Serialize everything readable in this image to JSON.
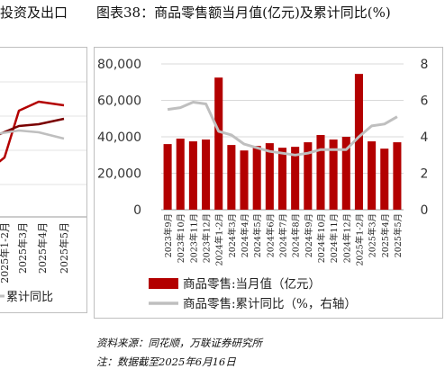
{
  "left_header": "投资及出口",
  "main_header": "图表38：商品零售额当月值(亿元)及累计同比(%)",
  "left_chart": {
    "xlabels": [
      "2025年1-2月",
      "2025年3月",
      "2025年4月",
      "2025年5月"
    ],
    "legend": "累计同比"
  },
  "chart_data": {
    "type": "bar",
    "categories": [
      "2023年9月",
      "2023年10月",
      "2023年11月",
      "2023年12月",
      "2024年1-2月",
      "2024年3月",
      "2024年4月",
      "2024年5月",
      "2024年6月",
      "2024年7月",
      "2024年8月",
      "2024年9月",
      "2024年10月",
      "2024年11月",
      "2024年12月",
      "2025年1-2月",
      "2025年3月",
      "2025年4月",
      "2025年5月"
    ],
    "series": [
      {
        "name": "商品零售:当月值（亿元）",
        "type": "bar",
        "axis": "left",
        "color": "#b30000",
        "values": [
          36000,
          39000,
          37500,
          38500,
          72500,
          35500,
          32500,
          35000,
          36500,
          34000,
          34500,
          37000,
          41000,
          38500,
          40000,
          74500,
          37500,
          33500,
          37000
        ]
      },
      {
        "name": "商品零售:累计同比（%，右轴）",
        "type": "line",
        "axis": "right",
        "color": "#bfbfbf",
        "values": [
          5.5,
          5.6,
          5.9,
          5.8,
          4.3,
          4.1,
          3.6,
          3.4,
          3.2,
          3.1,
          3.0,
          3.1,
          3.3,
          3.3,
          3.3,
          4.0,
          4.6,
          4.7,
          5.1
        ]
      }
    ],
    "yticks_left": [
      "0",
      "20,000",
      "40,000",
      "60,000",
      "80,000"
    ],
    "yticks_right": [
      "0",
      "2",
      "4",
      "6",
      "8"
    ],
    "ylim_left": [
      0,
      80000
    ],
    "ylim_right": [
      0,
      8
    ],
    "grid": true,
    "legend_position": "bottom"
  },
  "footnotes": {
    "source": "资料来源：同花顺，万联证券研究所",
    "note": "注：数据截至2025年6月16日"
  }
}
